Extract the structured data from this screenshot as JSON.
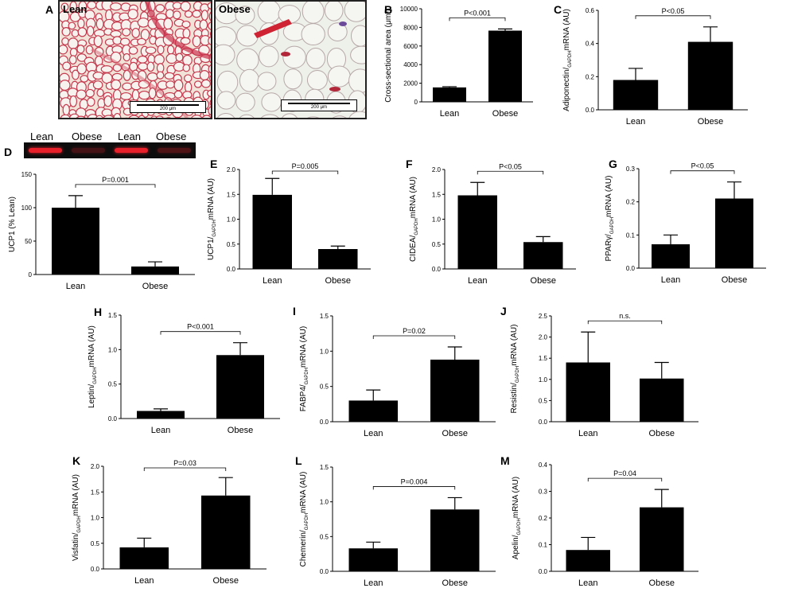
{
  "histology": {
    "letter": "A",
    "lean_label": "Lean",
    "obese_label": "Obese",
    "scale_lean": "200 μm",
    "scale_obese": "200 μm"
  },
  "western_blot": {
    "letter": "D",
    "lanes": [
      "Lean",
      "Obese",
      "Lean",
      "Obese"
    ],
    "band_intensity": [
      1.0,
      0.25,
      1.0,
      0.3
    ],
    "band_color": "#e8202a"
  },
  "colors": {
    "bar": "#000000",
    "axis": "#000000"
  },
  "chart_data": [
    {
      "id": "B",
      "letter": "B",
      "type": "bar",
      "categories": [
        "Lean",
        "Obese"
      ],
      "values": [
        1550,
        7650
      ],
      "errors": [
        80,
        180
      ],
      "ylabel": "Cross-sectional area (μm²)",
      "ylim": [
        0,
        10000
      ],
      "yticks": [
        "0",
        "2000",
        "4000",
        "6000",
        "8000",
        "10000"
      ],
      "pvalue": "P<0.001"
    },
    {
      "id": "C",
      "letter": "C",
      "type": "bar",
      "categories": [
        "Lean",
        "Obese"
      ],
      "values": [
        0.18,
        0.41
      ],
      "errors": [
        0.07,
        0.09
      ],
      "ylabel": "Adiponectin/GAPDH mRNA (AU)",
      "ylim": [
        0,
        0.6
      ],
      "yticks": [
        "0.0",
        "0.2",
        "0.4",
        "0.6"
      ],
      "pvalue": "P<0.05"
    },
    {
      "id": "Dc",
      "letter": "",
      "type": "bar",
      "categories": [
        "Lean",
        "Obese"
      ],
      "values": [
        100,
        12
      ],
      "errors": [
        18,
        7
      ],
      "ylabel": "UCP1 (% Lean)",
      "ylim": [
        0,
        150
      ],
      "yticks": [
        "0",
        "50",
        "100",
        "150"
      ],
      "pvalue": "P=0.001"
    },
    {
      "id": "E",
      "letter": "E",
      "type": "bar",
      "categories": [
        "Lean",
        "Obese"
      ],
      "values": [
        1.49,
        0.4
      ],
      "errors": [
        0.33,
        0.06
      ],
      "ylabel": "UCP1/GAPDH mRNA (AU)",
      "ylim": [
        0,
        2.0
      ],
      "yticks": [
        "0.0",
        "0.5",
        "1.0",
        "1.5",
        "2.0"
      ],
      "pvalue": "P=0.005"
    },
    {
      "id": "F",
      "letter": "F",
      "type": "bar",
      "categories": [
        "Lean",
        "Obese"
      ],
      "values": [
        1.48,
        0.54
      ],
      "errors": [
        0.26,
        0.11
      ],
      "ylabel": "CIDEA/GAPDH mRNA (AU)",
      "ylim": [
        0,
        2.0
      ],
      "yticks": [
        "0.0",
        "0.5",
        "1.0",
        "1.5",
        "2.0"
      ],
      "pvalue": "P<0.05"
    },
    {
      "id": "G",
      "letter": "G",
      "type": "bar",
      "categories": [
        "Lean",
        "Obese"
      ],
      "values": [
        0.072,
        0.21
      ],
      "errors": [
        0.028,
        0.05
      ],
      "ylabel": "PPARγ/GAPDH mRNA (AU)",
      "ylim": [
        0,
        0.3
      ],
      "yticks": [
        "0.0",
        "0.1",
        "0.2",
        "0.3"
      ],
      "pvalue": "P<0.05"
    },
    {
      "id": "H",
      "letter": "H",
      "type": "bar",
      "categories": [
        "Lean",
        "Obese"
      ],
      "values": [
        0.11,
        0.92
      ],
      "errors": [
        0.03,
        0.18
      ],
      "ylabel": "Leptin/GAPDH mRNA (AU)",
      "ylim": [
        0,
        1.5
      ],
      "yticks": [
        "0.0",
        "0.5",
        "1.0",
        "1.5"
      ],
      "pvalue": "P<0.001"
    },
    {
      "id": "I",
      "letter": "I",
      "type": "bar",
      "categories": [
        "Lean",
        "Obese"
      ],
      "values": [
        0.3,
        0.88
      ],
      "errors": [
        0.15,
        0.18
      ],
      "ylabel": "FABP4/GAPDH mRNA (AU)",
      "ylim": [
        0,
        1.5
      ],
      "yticks": [
        "0.0",
        "0.5",
        "1.0",
        "1.5"
      ],
      "pvalue": "P=0.02"
    },
    {
      "id": "J",
      "letter": "J",
      "type": "bar",
      "categories": [
        "Lean",
        "Obese"
      ],
      "values": [
        1.4,
        1.02
      ],
      "errors": [
        0.72,
        0.38
      ],
      "ylabel": "Resistin/GAPDH mRNA (AU)",
      "ylim": [
        0,
        2.5
      ],
      "yticks": [
        "0.0",
        "0.5",
        "1.0",
        "1.5",
        "2.0",
        "2.5"
      ],
      "pvalue": "n.s."
    },
    {
      "id": "K",
      "letter": "K",
      "type": "bar",
      "categories": [
        "Lean",
        "Obese"
      ],
      "values": [
        0.42,
        1.43
      ],
      "errors": [
        0.18,
        0.35
      ],
      "ylabel": "Visfatin/GAPDH mRNA (AU)",
      "ylim": [
        0,
        2.0
      ],
      "yticks": [
        "0.0",
        "0.5",
        "1.0",
        "1.5",
        "2.0"
      ],
      "pvalue": "P=0.03"
    },
    {
      "id": "L",
      "letter": "L",
      "type": "bar",
      "categories": [
        "Lean",
        "Obese"
      ],
      "values": [
        0.33,
        0.89
      ],
      "errors": [
        0.09,
        0.17
      ],
      "ylabel": "Chemerin/GAPDH mRNA (AU)",
      "ylim": [
        0,
        1.5
      ],
      "yticks": [
        "0.0",
        "0.5",
        "1.0",
        "1.5"
      ],
      "pvalue": "P=0.004"
    },
    {
      "id": "M",
      "letter": "M",
      "type": "bar",
      "categories": [
        "Lean",
        "Obese"
      ],
      "values": [
        0.08,
        0.24
      ],
      "errors": [
        0.047,
        0.067
      ],
      "ylabel": "Apelin/GAPDH mRNA (AU)",
      "ylim": [
        0,
        0.4
      ],
      "yticks": [
        "0.0",
        "0.1",
        "0.2",
        "0.3",
        "0.4"
      ],
      "pvalue": "P=0.04"
    }
  ]
}
